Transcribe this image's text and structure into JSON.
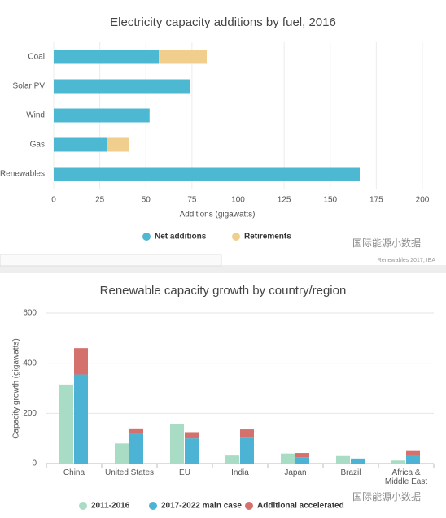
{
  "watermark": "国际能源小数据",
  "chart_data": [
    {
      "type": "bar",
      "orientation": "horizontal",
      "title": "Electricity capacity additions by fuel, 2016",
      "categories": [
        "Coal",
        "Solar PV",
        "Wind",
        "Gas",
        "Renewables"
      ],
      "series": [
        {
          "name": "Net additions",
          "color": "#4db8d2",
          "values": [
            57,
            74,
            52,
            29,
            166
          ]
        },
        {
          "name": "Retirements",
          "color": "#f0cf8e",
          "values": [
            26,
            null,
            null,
            12,
            null
          ]
        }
      ],
      "xlim": [
        0,
        200
      ],
      "xticks": [
        0,
        25,
        50,
        75,
        100,
        125,
        150,
        175,
        200
      ],
      "xlabel": "Additions (gigawatts)",
      "grid": true,
      "legend": "bottom",
      "source": "Renewables 2017, IEA"
    },
    {
      "type": "bar",
      "orientation": "vertical",
      "title": "Renewable capacity growth by country/region",
      "categories": [
        "China",
        "United States",
        "EU",
        "India",
        "Japan",
        "Brazil",
        "Africa & Middle East"
      ],
      "series": [
        {
          "name": "2011-2016",
          "color": "#a9dcc5",
          "stack": 0,
          "values": [
            315,
            80,
            158,
            32,
            40,
            30,
            12
          ]
        },
        {
          "name": "2017-2022 main case",
          "color": "#4cb3d4",
          "stack": 1,
          "values": [
            355,
            118,
            100,
            103,
            25,
            20,
            33
          ]
        },
        {
          "name": "Additional accelerated",
          "color": "#d4716d",
          "stack": 1,
          "values": [
            105,
            22,
            25,
            33,
            17,
            null,
            20
          ]
        }
      ],
      "ylim": [
        0,
        600
      ],
      "yticks": [
        0,
        200,
        400,
        600
      ],
      "ylabel": "Capacity growth (gigawatts)",
      "grid": true,
      "legend": "bottom"
    }
  ]
}
